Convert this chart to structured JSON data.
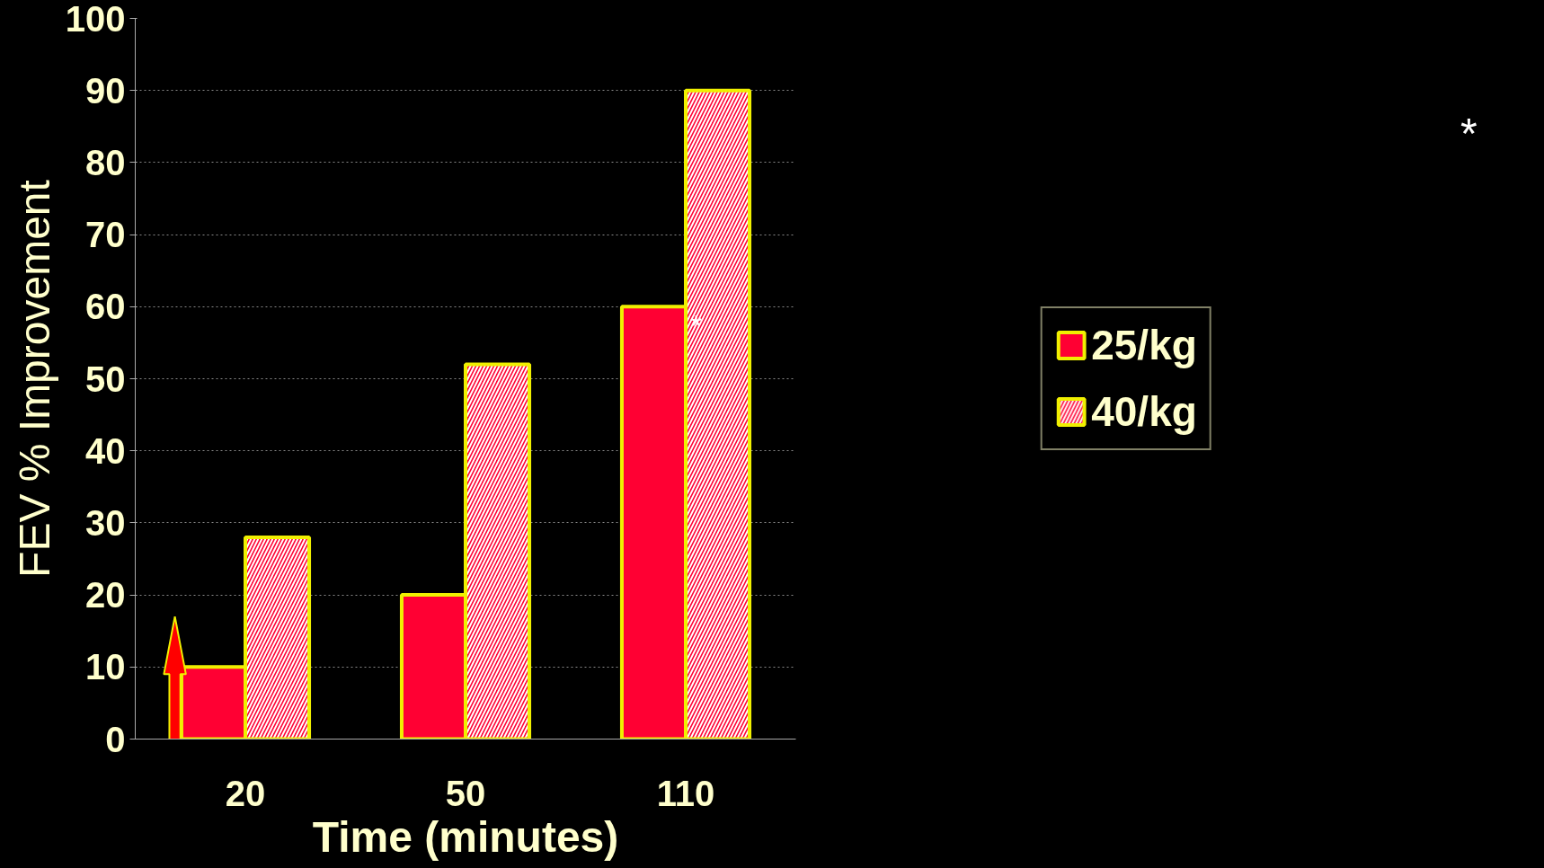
{
  "chart_data": {
    "type": "bar",
    "xlabel": "Time (minutes)",
    "ylabel": "FEV % Improvement",
    "categories": [
      "20",
      "50",
      "110"
    ],
    "series": [
      {
        "name": "25/kg",
        "color": "#ff0033",
        "values": [
          10,
          20,
          60
        ]
      },
      {
        "name": "40/kg",
        "color": "#ff0033",
        "values": [
          28,
          52,
          90
        ]
      }
    ],
    "ylim": [
      0,
      100
    ],
    "yticks": [
      0,
      10,
      20,
      30,
      40,
      50,
      60,
      70,
      80,
      90,
      100
    ],
    "grid": "y",
    "legend": "right",
    "annotations": [
      {
        "text": "*",
        "x": "110",
        "y": 60
      },
      "*"
    ]
  }
}
